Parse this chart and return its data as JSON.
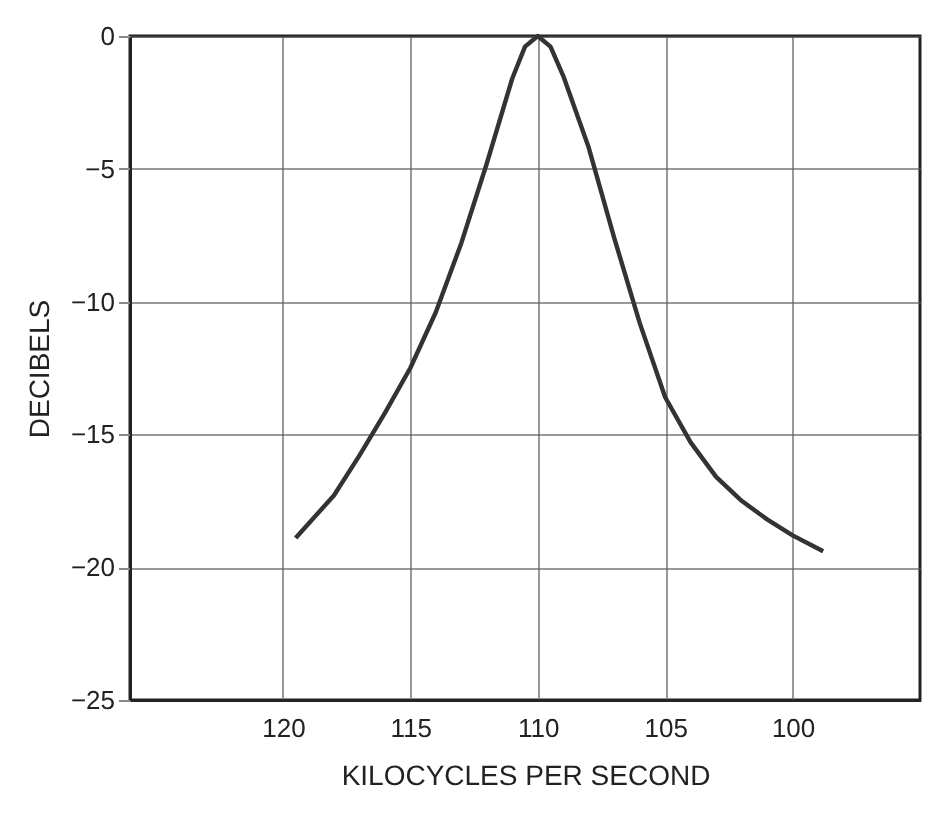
{
  "chart_data": {
    "type": "line",
    "xlabel": "KILOCYCLES PER SECOND",
    "ylabel": "DECIBELS",
    "x": [
      119.5,
      118,
      117,
      116,
      115,
      114,
      113,
      112,
      111,
      110.5,
      110,
      109.5,
      109,
      108,
      107,
      106,
      105,
      104,
      103,
      102,
      101,
      100,
      98.8
    ],
    "series": [
      {
        "color": "#333333",
        "values": [
          -18.9,
          -17.3,
          -15.8,
          -14.2,
          -12.5,
          -10.4,
          -7.8,
          -4.8,
          -1.6,
          -0.4,
          0,
          -0.4,
          -1.5,
          -4.2,
          -7.6,
          -10.8,
          -13.6,
          -15.3,
          -16.6,
          -17.5,
          -18.2,
          -18.8,
          -19.4
        ]
      }
    ],
    "xlim": [
      126,
      95
    ],
    "xticks": [
      120,
      115,
      110,
      105,
      100
    ],
    "ylim": [
      -25,
      0
    ],
    "yticks": [
      0,
      -5,
      -10,
      -15,
      -20,
      -25
    ],
    "grid": true,
    "marker": "none",
    "line_style": "solid"
  }
}
